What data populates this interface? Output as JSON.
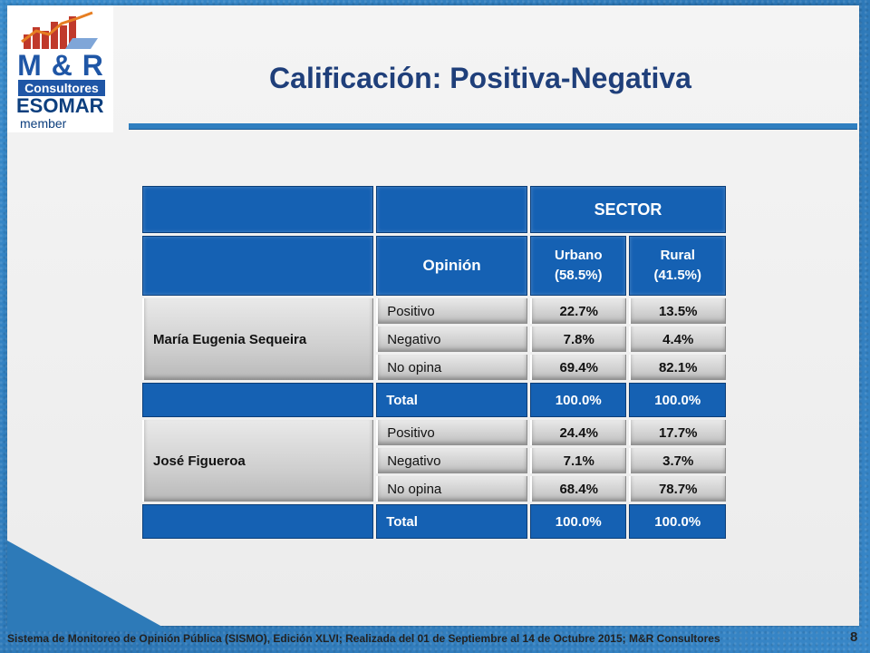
{
  "logo": {
    "brand": "M & R",
    "tagline": "Consultores",
    "esomar": "ESOMAR",
    "member": "member"
  },
  "slide": {
    "title": "Calificación: Positiva-Negativa",
    "page_number": "8",
    "footer": "Sistema de Monitoreo de Opinión Pública (SISMO), Edición XLVI; Realizada del 01 de Septiembre al 14 de Octubre 2015; M&R Consultores"
  },
  "table": {
    "group_header": "SECTOR",
    "opinion_header": "Opinión",
    "columns": [
      {
        "name": "Urbano",
        "share": "(58.5%)"
      },
      {
        "name": "Rural",
        "share": "(41.5%)"
      }
    ],
    "total_label": "Total",
    "candidates": [
      {
        "name": "María Eugenia Sequeira",
        "rows": [
          {
            "opinion": "Positivo",
            "urbano": "22.7%",
            "rural": "13.5%"
          },
          {
            "opinion": "Negativo",
            "urbano": "7.8%",
            "rural": "4.4%"
          },
          {
            "opinion": "No opina",
            "urbano": "69.4%",
            "rural": "82.1%"
          }
        ],
        "total": {
          "urbano": "100.0%",
          "rural": "100.0%"
        }
      },
      {
        "name": "José Figueroa",
        "rows": [
          {
            "opinion": "Positivo",
            "urbano": "24.4%",
            "rural": "17.7%"
          },
          {
            "opinion": "Negativo",
            "urbano": "7.1%",
            "rural": "3.7%"
          },
          {
            "opinion": "No opina",
            "urbano": "68.4%",
            "rural": "78.7%"
          }
        ],
        "total": {
          "urbano": "100.0%",
          "rural": "100.0%"
        }
      }
    ]
  },
  "colors": {
    "header_blue": "#1561b3",
    "title_navy": "#1f3f7a",
    "background_blue": "#2f7fbf"
  }
}
